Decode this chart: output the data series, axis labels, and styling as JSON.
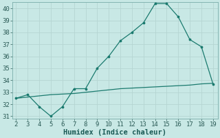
{
  "x": [
    2,
    3,
    4,
    5,
    6,
    7,
    8,
    9,
    10,
    11,
    12,
    13,
    14,
    15,
    16,
    17,
    18,
    19
  ],
  "y_main": [
    32.5,
    32.8,
    31.8,
    31.0,
    31.8,
    33.3,
    33.3,
    35.0,
    36.0,
    37.3,
    38.0,
    38.8,
    40.4,
    40.4,
    39.3,
    37.4,
    36.8,
    33.7
  ],
  "y_ref": [
    32.5,
    32.6,
    32.7,
    32.8,
    32.85,
    32.9,
    33.0,
    33.1,
    33.2,
    33.3,
    33.35,
    33.4,
    33.45,
    33.5,
    33.55,
    33.6,
    33.7,
    33.75
  ],
  "line_color": "#1a7a6e",
  "bg_color": "#c8e8e5",
  "grid_color": "#b5d5d2",
  "xlabel": "Humidex (Indice chaleur)",
  "ylim": [
    31,
    40
  ],
  "xlim": [
    2,
    19
  ],
  "yticks": [
    31,
    32,
    33,
    34,
    35,
    36,
    37,
    38,
    39,
    40
  ],
  "xticks": [
    2,
    3,
    4,
    5,
    6,
    7,
    8,
    9,
    10,
    11,
    12,
    13,
    14,
    15,
    16,
    17,
    18,
    19
  ],
  "tick_fontsize": 6.5,
  "xlabel_fontsize": 7.5,
  "marker_size": 3.5
}
